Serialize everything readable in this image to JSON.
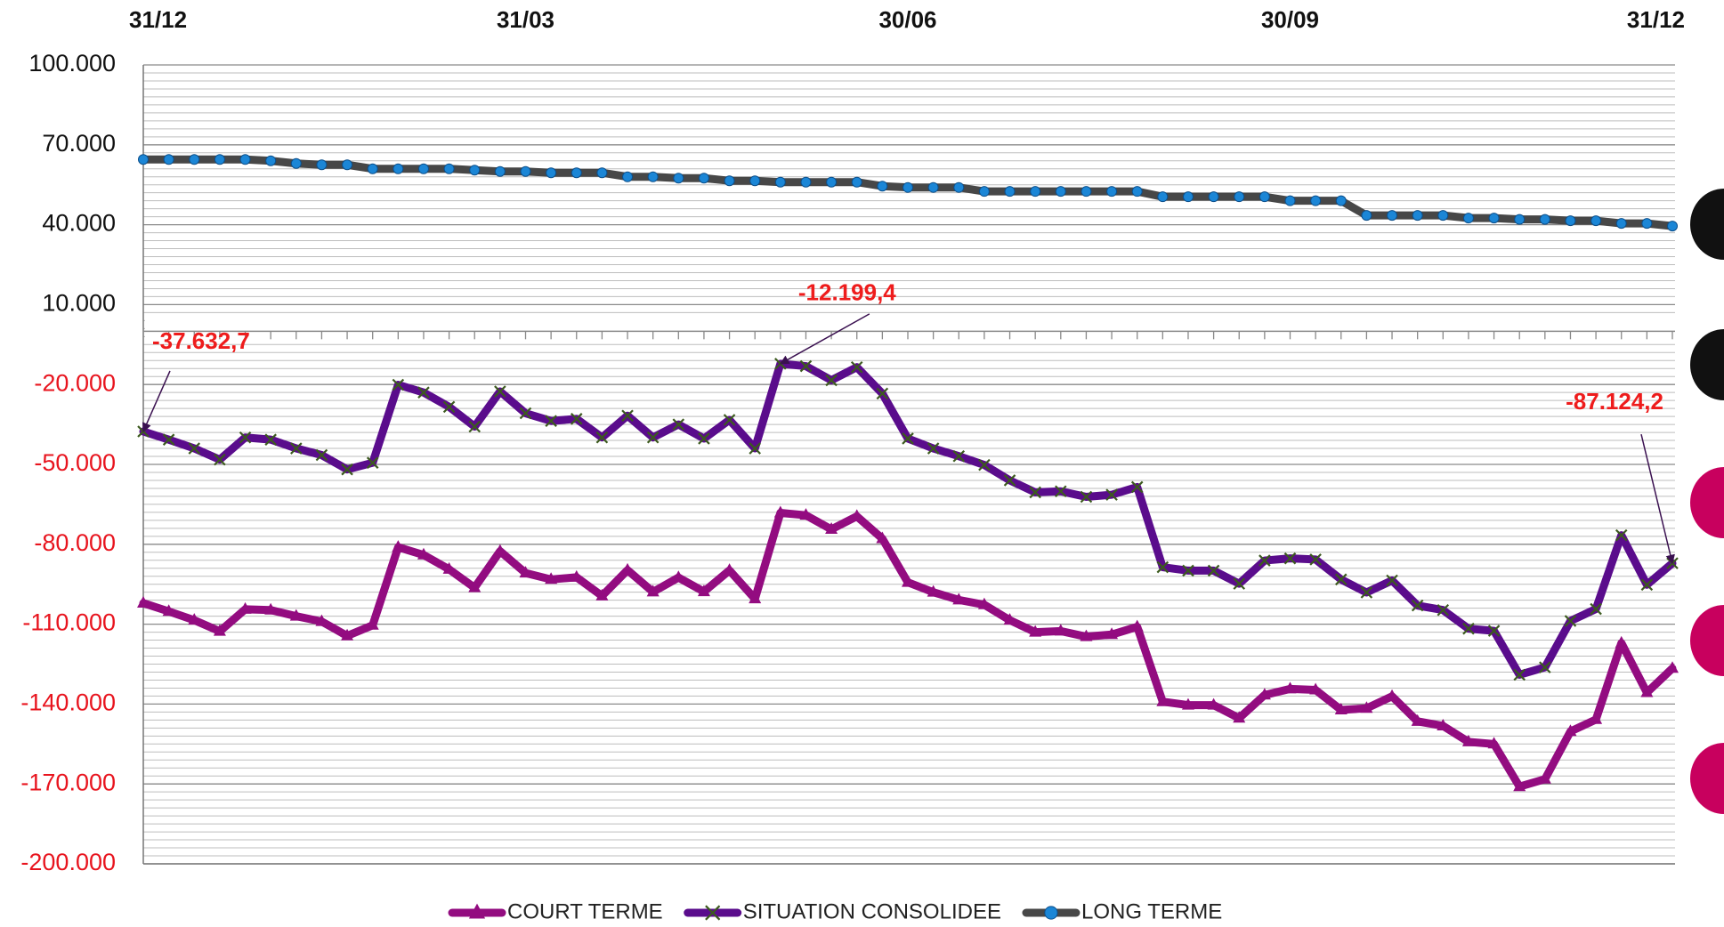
{
  "chart_data": {
    "type": "line",
    "categories": [
      "31/12",
      null,
      null,
      null,
      null,
      null,
      null,
      null,
      null,
      null,
      null,
      null,
      null,
      null,
      null,
      "31/03",
      null,
      null,
      null,
      null,
      null,
      null,
      null,
      null,
      null,
      null,
      null,
      null,
      null,
      null,
      "30/06",
      null,
      null,
      null,
      null,
      null,
      null,
      null,
      null,
      null,
      null,
      null,
      null,
      null,
      null,
      "30/09",
      null,
      null,
      null,
      null,
      null,
      null,
      null,
      null,
      null,
      null,
      null,
      null,
      null,
      null,
      "31/12"
    ],
    "ylim": [
      -200000,
      100000
    ],
    "yticks": [
      {
        "value": 100000,
        "label": "100.000"
      },
      {
        "value": 70000,
        "label": "70.000"
      },
      {
        "value": 40000,
        "label": "40.000"
      },
      {
        "value": 10000,
        "label": "10.000"
      },
      {
        "value": -20000,
        "label": "-20.000"
      },
      {
        "value": -50000,
        "label": "-50.000"
      },
      {
        "value": -80000,
        "label": "-80.000"
      },
      {
        "value": -110000,
        "label": "-110.000"
      },
      {
        "value": -140000,
        "label": "-140.000"
      },
      {
        "value": -170000,
        "label": "-170.000"
      },
      {
        "value": -200000,
        "label": "-200.000"
      }
    ],
    "grid": true,
    "legend": "bottom",
    "series": [
      {
        "name": "COURT TERME",
        "color": "#930c80",
        "marker": "triangle",
        "values": [
          -102100,
          -105200,
          -108500,
          -112700,
          -104400,
          -104700,
          -107000,
          -109000,
          -114400,
          -110400,
          -81100,
          -84000,
          -89400,
          -96300,
          -82600,
          -90800,
          -93200,
          -92400,
          -99400,
          -89700,
          -97900,
          -92500,
          -97800,
          -89800,
          -100500,
          -68200,
          -69100,
          -74400,
          -69500,
          -77900,
          -94300,
          -98000,
          -100900,
          -102700,
          -108500,
          -113000,
          -112600,
          -114700,
          -113900,
          -111000,
          -139100,
          -140400,
          -140400,
          -145300,
          -136600,
          -134300,
          -134700,
          -142200,
          -141600,
          -137100,
          -146500,
          -148200,
          -154200,
          -155000,
          -171000,
          -168200,
          -150300,
          -145800,
          -117100,
          -135700,
          -126600
        ]
      },
      {
        "name": "SITUATION CONSOLIDEE",
        "color": "#5a0c8c",
        "marker": "x",
        "values": [
          -37632.7,
          -40700,
          -44000,
          -48200,
          -39900,
          -40700,
          -44000,
          -46500,
          -51900,
          -49400,
          -20100,
          -23000,
          -28400,
          -35800,
          -22600,
          -30800,
          -33700,
          -32900,
          -39900,
          -31700,
          -39900,
          -35000,
          -40300,
          -33300,
          -44000,
          -12199.4,
          -13100,
          -18400,
          -13500,
          -23400,
          -40300,
          -44000,
          -46900,
          -50200,
          -56000,
          -60500,
          -60100,
          -62200,
          -61400,
          -58500,
          -88600,
          -89900,
          -89900,
          -94800,
          -86100,
          -85300,
          -85700,
          -93200,
          -98100,
          -93600,
          -103000,
          -104700,
          -111700,
          -112500,
          -129000,
          -126200,
          -108800,
          -104300,
          -76600,
          -95200,
          -87124.2
        ]
      },
      {
        "name": "LONG TERME",
        "color": "#474747",
        "marker": "circle",
        "values": [
          64500,
          64500,
          64500,
          64500,
          64500,
          64000,
          63000,
          62500,
          62500,
          61000,
          61000,
          61000,
          61000,
          60500,
          60000,
          60000,
          59500,
          59500,
          59500,
          58000,
          58000,
          57500,
          57500,
          56500,
          56500,
          56000,
          56000,
          56000,
          56000,
          54500,
          54000,
          54000,
          54000,
          52500,
          52500,
          52500,
          52500,
          52500,
          52500,
          52500,
          50500,
          50500,
          50500,
          50500,
          50500,
          49000,
          49000,
          49000,
          43500,
          43500,
          43500,
          43500,
          42500,
          42500,
          42000,
          42000,
          41500,
          41500,
          40500,
          40500,
          39500
        ]
      }
    ],
    "annotations": [
      {
        "series": 1,
        "index": 0,
        "value": -37632.7,
        "label": "-37.632,7"
      },
      {
        "series": 1,
        "index": 25,
        "value": -12199.4,
        "label": "-12.199,4"
      },
      {
        "series": 1,
        "index": 60,
        "value": -87124.2,
        "label": "-87.124,2"
      }
    ]
  }
}
